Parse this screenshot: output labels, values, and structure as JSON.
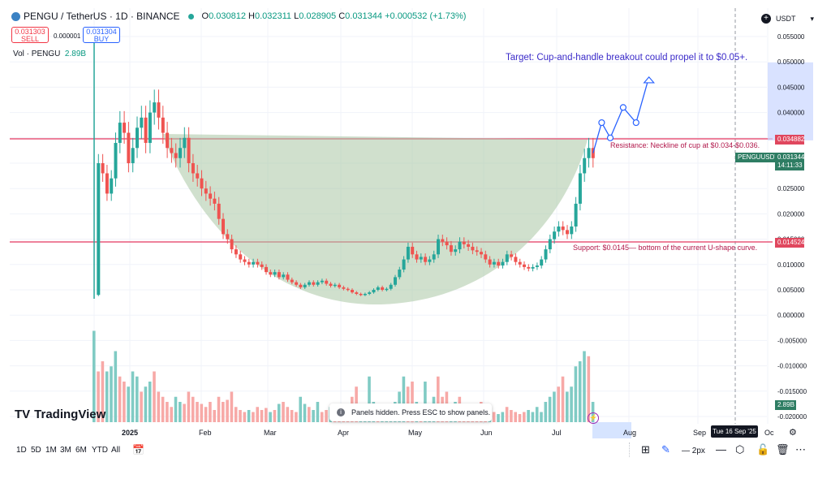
{
  "header": {
    "symbol": "PENGU / TetherUS · 1D · BINANCE",
    "o_label": "O",
    "o": "0.030812",
    "h_label": "H",
    "h": "0.032311",
    "l_label": "L",
    "l": "0.028905",
    "c_label": "C",
    "c": "0.031344",
    "change": "+0.000532 (+1.73%)",
    "sell_price": "0.031303",
    "sell_label": "SELL",
    "spread": "0.000001",
    "buy_price": "0.031304",
    "buy_label": "BUY",
    "volume_label": "Vol · PENGU",
    "volume_value": "2.89B",
    "currency": "USDT",
    "currency_arrow": "▾"
  },
  "colors": {
    "up": "#26a69a",
    "down": "#ef5350",
    "level_line": "#e8587a",
    "cup_fill": "#a9c7a4",
    "projection": "#2962ff",
    "label_bg": "#e0475e",
    "price_bg": "#2e7d63",
    "vol_up": "#80cbc4",
    "vol_down": "#f7a9a7"
  },
  "chart_data": {
    "type": "candlestick",
    "symbol": "PENGUUSDT",
    "y_ticks": [
      "0.055000",
      "0.050000",
      "0.045000",
      "0.040000",
      "0.035000",
      "0.030000",
      "0.025000",
      "0.020000",
      "0.015000",
      "0.010000",
      "0.005000",
      "0.000000",
      "-0.005000",
      "-0.010000",
      "-0.015000",
      "-0.020000"
    ],
    "ylim": [
      -0.021,
      0.058
    ],
    "x_labels": [
      "2025",
      "Feb",
      "Mar",
      "Apr",
      "May",
      "Jun",
      "Jul",
      "Aug",
      "Sep",
      "Oc"
    ],
    "resistance_value": "0.034882",
    "support_value": "0.014524",
    "last_price": "0.031344",
    "last_symbol": "PENGUUSDT",
    "countdown": "14:11:33",
    "volume_last": "2.89B",
    "crosshair_date": "Tue 16 Sep '25",
    "price_path": [
      [
        0,
        0.004
      ],
      [
        1,
        0.03
      ],
      [
        2,
        0.028
      ],
      [
        3,
        0.024
      ],
      [
        4,
        0.027
      ],
      [
        5,
        0.034
      ],
      [
        6,
        0.038
      ],
      [
        7,
        0.036
      ],
      [
        8,
        0.03
      ],
      [
        9,
        0.033
      ],
      [
        10,
        0.037
      ],
      [
        11,
        0.039
      ],
      [
        12,
        0.034
      ],
      [
        13,
        0.04
      ],
      [
        14,
        0.042
      ],
      [
        15,
        0.039
      ],
      [
        16,
        0.036
      ],
      [
        17,
        0.033
      ],
      [
        18,
        0.032
      ],
      [
        19,
        0.031
      ],
      [
        20,
        0.033
      ],
      [
        21,
        0.035
      ],
      [
        22,
        0.03
      ],
      [
        23,
        0.028
      ],
      [
        24,
        0.027
      ],
      [
        25,
        0.025
      ],
      [
        26,
        0.024
      ],
      [
        27,
        0.023
      ],
      [
        28,
        0.022
      ],
      [
        29,
        0.019
      ],
      [
        30,
        0.016
      ],
      [
        31,
        0.015
      ],
      [
        32,
        0.013
      ],
      [
        33,
        0.012
      ],
      [
        34,
        0.011
      ],
      [
        35,
        0.0105
      ],
      [
        36,
        0.01
      ],
      [
        37,
        0.0105
      ],
      [
        38,
        0.01
      ],
      [
        39,
        0.0095
      ],
      [
        40,
        0.0085
      ],
      [
        41,
        0.008
      ],
      [
        42,
        0.0085
      ],
      [
        43,
        0.0075
      ],
      [
        44,
        0.008
      ],
      [
        45,
        0.007
      ],
      [
        46,
        0.0065
      ],
      [
        47,
        0.006
      ],
      [
        48,
        0.0055
      ],
      [
        49,
        0.006
      ],
      [
        50,
        0.0065
      ],
      [
        51,
        0.006
      ],
      [
        52,
        0.0065
      ],
      [
        53,
        0.0068
      ],
      [
        54,
        0.0062
      ],
      [
        55,
        0.0058
      ],
      [
        56,
        0.006
      ],
      [
        57,
        0.0055
      ],
      [
        58,
        0.0052
      ],
      [
        59,
        0.005
      ],
      [
        60,
        0.0045
      ],
      [
        61,
        0.0042
      ],
      [
        62,
        0.004
      ],
      [
        63,
        0.0042
      ],
      [
        64,
        0.0045
      ],
      [
        65,
        0.005
      ],
      [
        66,
        0.0055
      ],
      [
        67,
        0.005
      ],
      [
        68,
        0.0052
      ],
      [
        69,
        0.006
      ],
      [
        70,
        0.0075
      ],
      [
        71,
        0.009
      ],
      [
        72,
        0.011
      ],
      [
        73,
        0.0135
      ],
      [
        74,
        0.012
      ],
      [
        75,
        0.011
      ],
      [
        76,
        0.0115
      ],
      [
        77,
        0.0105
      ],
      [
        78,
        0.011
      ],
      [
        79,
        0.012
      ],
      [
        80,
        0.015
      ],
      [
        81,
        0.0145
      ],
      [
        82,
        0.0138
      ],
      [
        83,
        0.0125
      ],
      [
        84,
        0.013
      ],
      [
        85,
        0.0145
      ],
      [
        86,
        0.014
      ],
      [
        87,
        0.0135
      ],
      [
        88,
        0.0128
      ],
      [
        89,
        0.0125
      ],
      [
        90,
        0.012
      ],
      [
        91,
        0.011
      ],
      [
        92,
        0.01
      ],
      [
        93,
        0.0105
      ],
      [
        94,
        0.0098
      ],
      [
        95,
        0.0105
      ],
      [
        96,
        0.012
      ],
      [
        97,
        0.0115
      ],
      [
        98,
        0.0105
      ],
      [
        99,
        0.01
      ],
      [
        100,
        0.0095
      ],
      [
        101,
        0.0092
      ],
      [
        102,
        0.0095
      ],
      [
        103,
        0.0098
      ],
      [
        104,
        0.011
      ],
      [
        105,
        0.013
      ],
      [
        106,
        0.015
      ],
      [
        107,
        0.0165
      ],
      [
        108,
        0.0175
      ],
      [
        109,
        0.0168
      ],
      [
        110,
        0.016
      ],
      [
        111,
        0.0175
      ],
      [
        112,
        0.022
      ],
      [
        113,
        0.028
      ],
      [
        114,
        0.031
      ],
      [
        115,
        0.033
      ],
      [
        116,
        0.031
      ]
    ],
    "projection_path": [
      [
        116,
        0.032
      ],
      [
        118,
        0.038
      ],
      [
        120,
        0.035
      ],
      [
        123,
        0.041
      ],
      [
        126,
        0.038
      ],
      [
        129,
        0.047
      ]
    ],
    "volume": [
      0.9,
      0.5,
      0.6,
      0.5,
      0.55,
      0.7,
      0.45,
      0.4,
      0.35,
      0.5,
      0.45,
      0.3,
      0.35,
      0.4,
      0.5,
      0.3,
      0.25,
      0.2,
      0.15,
      0.25,
      0.2,
      0.18,
      0.3,
      0.25,
      0.2,
      0.18,
      0.15,
      0.2,
      0.12,
      0.25,
      0.2,
      0.22,
      0.3,
      0.15,
      0.12,
      0.1,
      0.12,
      0.1,
      0.15,
      0.12,
      0.14,
      0.1,
      0.12,
      0.18,
      0.2,
      0.15,
      0.12,
      0.1,
      0.25,
      0.18,
      0.15,
      0.12,
      0.2,
      0.1,
      0.12,
      0.15,
      0.1,
      0.12,
      0.08,
      0.1,
      0.25,
      0.35,
      0.15,
      0.12,
      0.45,
      0.2,
      0.1,
      0.12,
      0.15,
      0.1,
      0.2,
      0.3,
      0.45,
      0.35,
      0.4,
      0.2,
      0.15,
      0.4,
      0.15,
      0.25,
      0.45,
      0.25,
      0.3,
      0.15,
      0.2,
      0.25,
      0.15,
      0.1,
      0.12,
      0.15,
      0.2,
      0.1,
      0.12,
      0.1,
      0.08,
      0.1,
      0.15,
      0.12,
      0.1,
      0.08,
      0.1,
      0.12,
      0.1,
      0.15,
      0.1,
      0.2,
      0.25,
      0.3,
      0.35,
      0.45,
      0.3,
      0.35,
      0.55,
      0.6,
      0.7,
      0.65,
      0.2
    ]
  },
  "annotations": {
    "target": "Target: Cup-and-handle breakout could propel it to $0.05+.",
    "resistance": "Resistance: Neckline of cup at $0.034-$0.036.",
    "support": "Support: $0.0145— bottom of the current U-shape curve."
  },
  "branding": {
    "name": "TradingView",
    "mark": "TV"
  },
  "toast": "Panels hidden. Press ESC to show panels.",
  "timeframes": [
    "1D",
    "5D",
    "1M",
    "3M",
    "6M",
    "YTD",
    "All"
  ],
  "right_tools": {
    "thickness": "2px"
  }
}
